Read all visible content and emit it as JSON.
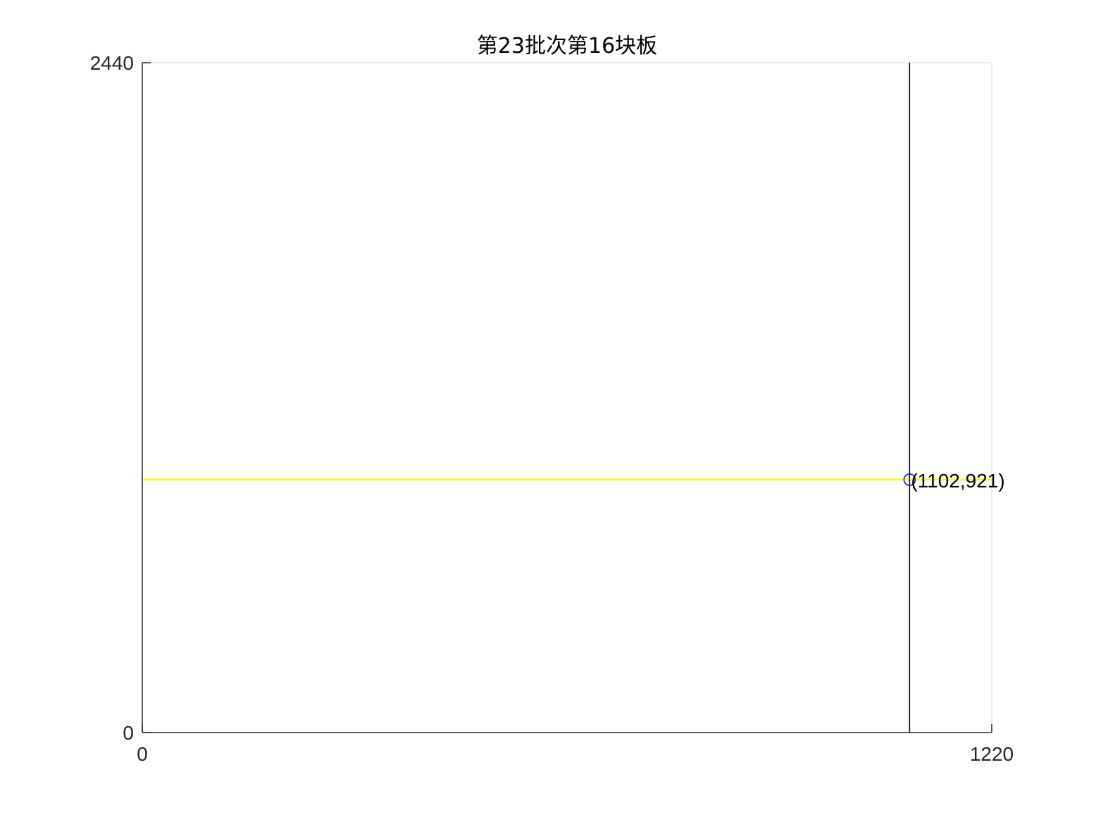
{
  "chart_data": {
    "type": "line",
    "title": "第23批次第16块板",
    "xlabel": "",
    "ylabel": "",
    "xlim": [
      0,
      1220
    ],
    "ylim": [
      0,
      2440
    ],
    "x_ticks": [
      0,
      1220
    ],
    "y_ticks": [
      0,
      2440
    ],
    "x_tick_labels": [
      "0",
      "1220"
    ],
    "y_tick_labels": [
      "0",
      "2440"
    ],
    "grid": false,
    "series": [
      {
        "kind": "horizontal-line",
        "color": "#ffff00",
        "x": [
          0,
          1220
        ],
        "y": [
          921,
          921
        ]
      },
      {
        "kind": "vertical-line",
        "color": "#000000",
        "x": [
          1102,
          1102
        ],
        "y": [
          0,
          2440
        ]
      },
      {
        "kind": "marker",
        "marker": "circle",
        "color": "#0000ff",
        "x": [
          1102
        ],
        "y": [
          921
        ]
      }
    ],
    "annotations": [
      {
        "x": 1102,
        "y": 921,
        "text": "(1102,921)"
      }
    ],
    "colors": {
      "axis": "#262626",
      "box": "#e6e6e6",
      "yellow_line": "#ffff00",
      "black_line": "#000000",
      "marker": "#0000ff"
    }
  }
}
